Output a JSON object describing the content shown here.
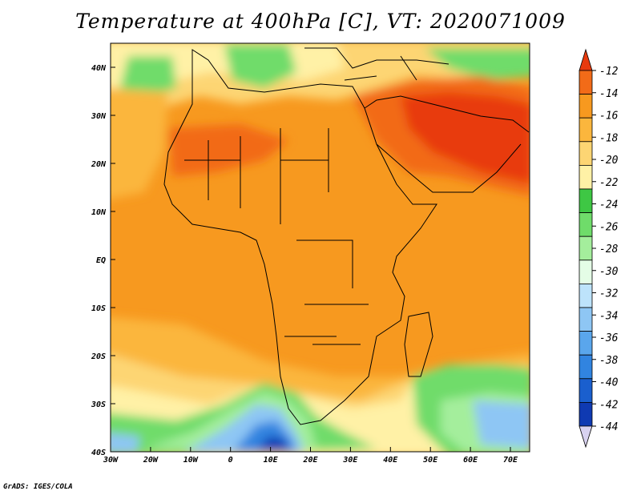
{
  "title": "Temperature at 400hPa [C], VT: 2020071009",
  "credit": "GrADS: IGES/COLA",
  "lat_ticks": [
    "40N",
    "30N",
    "20N",
    "10N",
    "EQ",
    "10S",
    "20S",
    "30S",
    "40S"
  ],
  "lon_ticks": [
    "30W",
    "20W",
    "10W",
    "0",
    "10E",
    "20E",
    "30E",
    "40E",
    "50E",
    "60E",
    "70E"
  ],
  "colorbar": {
    "labels": [
      "-12",
      "-14",
      "-16",
      "-18",
      "-20",
      "-22",
      "-24",
      "-26",
      "-28",
      "-30",
      "-32",
      "-34",
      "-36",
      "-38",
      "-40",
      "-42",
      "-44"
    ],
    "colors": [
      "#e83a0e",
      "#f26b18",
      "#f7991f",
      "#fbb63d",
      "#fdd573",
      "#fff1a6",
      "#3ec744",
      "#6fdc6a",
      "#a4ee9c",
      "#e4fde6",
      "#bde3fb",
      "#8ec6f4",
      "#5aa6ec",
      "#3184e0",
      "#1a5fce",
      "#0f3ab2",
      "#0c1a7a"
    ]
  }
}
